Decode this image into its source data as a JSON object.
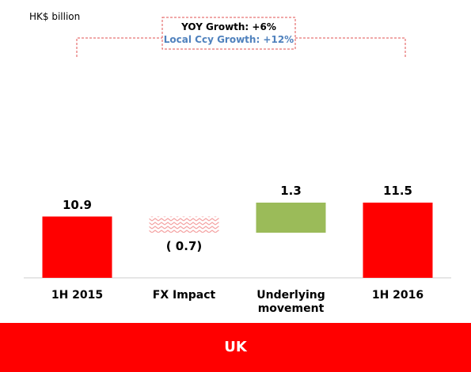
{
  "chart_data": {
    "type": "waterfall",
    "unit_label": "HK$ billion",
    "annotations": [
      "YOY Growth: +6%",
      "Local Ccy Growth: +12%"
    ],
    "categories": [
      "1H 2015",
      "FX Impact",
      "Underlying movement",
      "1H 2016"
    ],
    "values": [
      10.9,
      -0.7,
      1.3,
      11.5
    ],
    "value_labels": [
      "10.9",
      "( 0.7)",
      "1.3",
      "11.5"
    ],
    "colors": [
      "#ff0000",
      "#f4a3a3",
      "#9bbb59",
      "#ff0000"
    ],
    "footer": "UK"
  }
}
